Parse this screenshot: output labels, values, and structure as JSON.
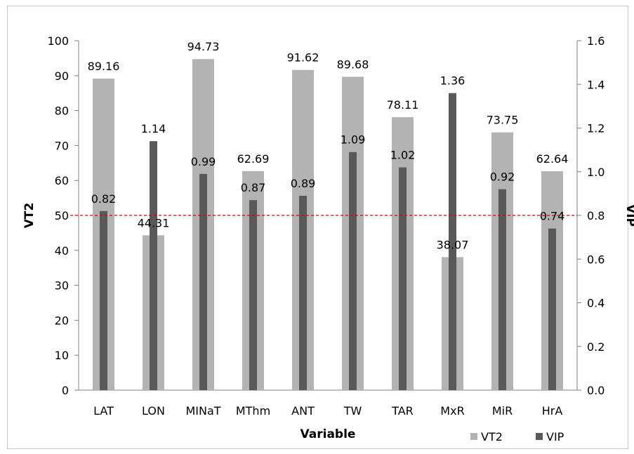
{
  "chart_data": {
    "type": "bar",
    "categories": [
      "LAT",
      "LON",
      "MINaT",
      "MThm",
      "ANT",
      "TW",
      "TAR",
      "MxR",
      "MiR",
      "HrA"
    ],
    "series": [
      {
        "name": "VT2",
        "axis": "left",
        "color": "#b3b3b3",
        "values": [
          89.16,
          44.31,
          94.73,
          62.69,
          91.62,
          89.68,
          78.11,
          38.07,
          73.75,
          62.64
        ],
        "labels": [
          "89.16",
          "44.31",
          "94.73",
          "62.69",
          "91.62",
          "89.68",
          "78.11",
          "38.07",
          "73.75",
          "62.64"
        ]
      },
      {
        "name": "VIP",
        "axis": "right",
        "color": "#595959",
        "values": [
          0.82,
          1.14,
          0.99,
          0.87,
          0.89,
          1.09,
          1.02,
          1.36,
          0.92,
          0.74
        ],
        "labels": [
          "0.82",
          "1.14",
          "0.99",
          "0.87",
          "0.89",
          "1.09",
          "1.02",
          "1.36",
          "0.92",
          "0.74"
        ]
      }
    ],
    "xlabel": "Variable",
    "ylabel": "VT2",
    "y2label": "VIP",
    "ylim": [
      0,
      100
    ],
    "y2lim": [
      0,
      1.6
    ],
    "yticks": [
      "0",
      "10",
      "20",
      "30",
      "40",
      "50",
      "60",
      "70",
      "80",
      "90",
      "100"
    ],
    "y2ticks": [
      "0.0",
      "0.2",
      "0.4",
      "0.6",
      "0.8",
      "1.0",
      "1.2",
      "1.4",
      "1.6"
    ],
    "threshold": {
      "axis": "right",
      "value": 0.8,
      "color": "#e00000",
      "style": "dashed"
    },
    "grid": false,
    "legend_position": "bottom-right"
  }
}
